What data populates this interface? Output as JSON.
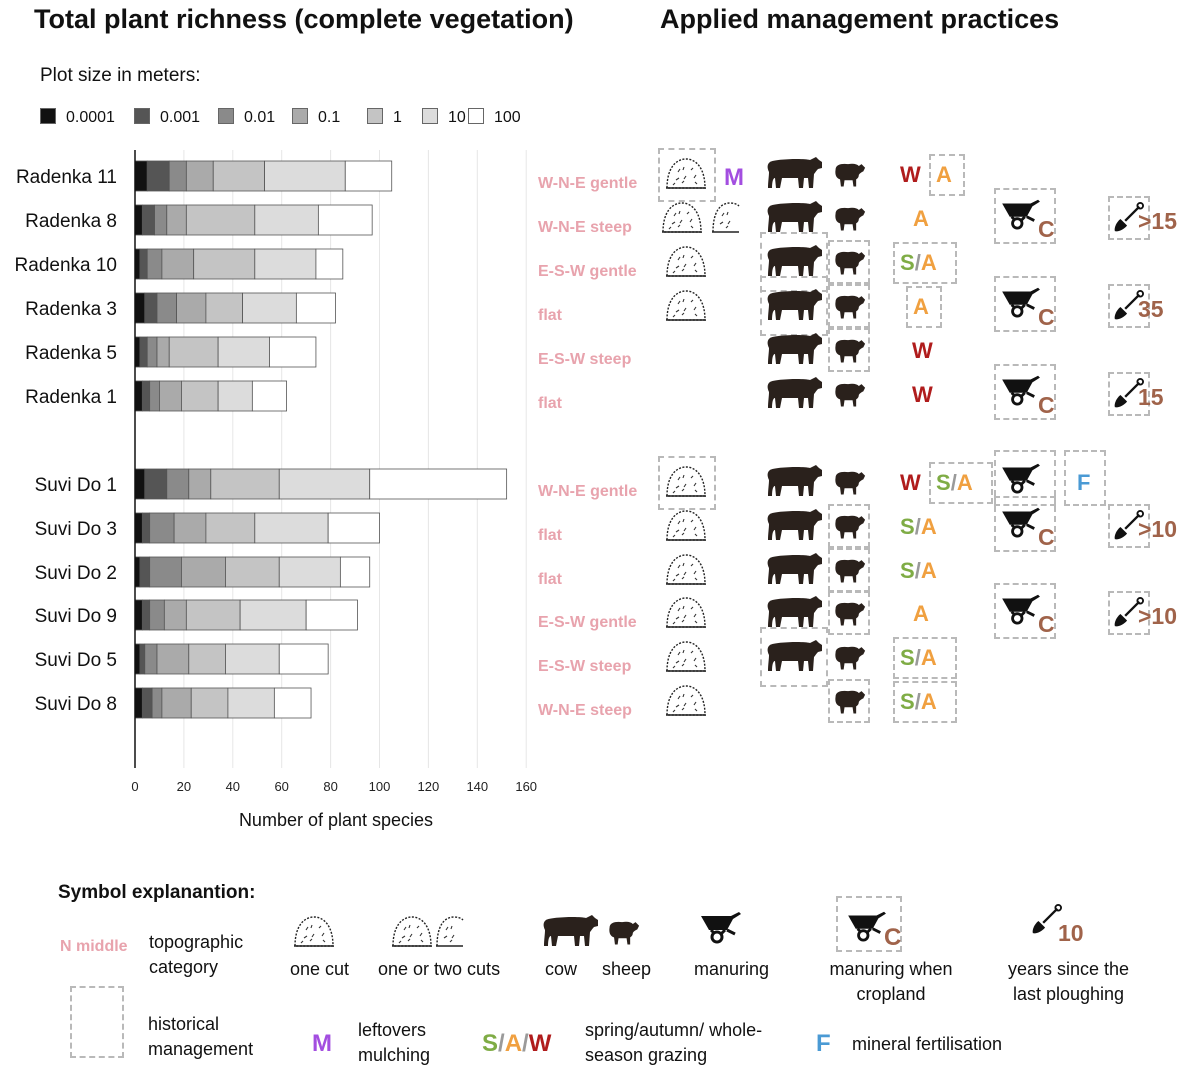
{
  "headings": {
    "left_title": "Total plant richness (complete vegetation)",
    "right_title": "Applied management practices"
  },
  "chart_data": {
    "type": "bar",
    "orientation": "horizontal",
    "stacked": true,
    "legend_title": "Plot size in meters:",
    "xlabel": "Number of plant species",
    "xlim": [
      0,
      160
    ],
    "xticks": [
      "0",
      "20",
      "40",
      "60",
      "80",
      "100",
      "120",
      "140",
      "160"
    ],
    "grid": true,
    "categories": [
      "Radenka 11",
      "Radenka 8",
      "Radenka 10",
      "Radenka 3",
      "Radenka 5",
      "Radenka 1",
      "Suvi Do 1",
      "Suvi Do 3",
      "Suvi Do 2",
      "Suvi Do 9",
      "Suvi Do 5",
      "Suvi Do 8"
    ],
    "series": [
      {
        "name": "0.0001",
        "color": "#111111",
        "values": [
          5,
          3,
          2,
          4,
          2,
          3,
          4,
          3,
          2,
          3,
          2,
          3
        ]
      },
      {
        "name": "0.001",
        "color": "#555555",
        "values": [
          9,
          5,
          3,
          5,
          3,
          3,
          9,
          3,
          4,
          3,
          2,
          4
        ]
      },
      {
        "name": "0.01",
        "color": "#8a8a8a",
        "values": [
          7,
          5,
          6,
          8,
          4,
          4,
          9,
          10,
          13,
          6,
          5,
          4
        ]
      },
      {
        "name": "0.1",
        "color": "#aaaaaa",
        "values": [
          11,
          8,
          13,
          12,
          5,
          9,
          9,
          13,
          18,
          9,
          13,
          12
        ]
      },
      {
        "name": "1",
        "color": "#c4c4c4",
        "values": [
          21,
          28,
          25,
          15,
          20,
          15,
          28,
          20,
          22,
          22,
          15,
          15
        ]
      },
      {
        "name": "10",
        "color": "#dcdcdc",
        "values": [
          33,
          26,
          25,
          22,
          21,
          14,
          37,
          30,
          25,
          27,
          22,
          19
        ]
      },
      {
        "name": "100",
        "color": "#ffffff",
        "values": [
          19,
          22,
          11,
          16,
          19,
          14,
          56,
          21,
          12,
          21,
          20,
          15
        ]
      }
    ]
  },
  "management": {
    "rows": [
      {
        "topo": "W-N-E gentle",
        "mowing": "one cut",
        "mow_hist": true,
        "mulch": "M",
        "cow": true,
        "cow_hist": false,
        "sheep": true,
        "sheep_hist": false,
        "graze": [
          {
            "t": "W",
            "hist": false
          },
          {
            "t": "A",
            "hist": true
          }
        ],
        "manure": "",
        "fert": "",
        "plough": ""
      },
      {
        "topo": "W-N-E steep",
        "mowing": "one or two cuts",
        "mow_hist": false,
        "mulch": "",
        "cow": true,
        "cow_hist": false,
        "sheep": true,
        "sheep_hist": false,
        "graze": [
          {
            "t": "A",
            "hist": false
          }
        ],
        "manure": "cropland",
        "fert": "",
        "plough": ">15"
      },
      {
        "topo": "E-S-W gentle",
        "mowing": "one cut",
        "mow_hist": false,
        "mulch": "",
        "cow": true,
        "cow_hist": true,
        "sheep": true,
        "sheep_hist": true,
        "graze": [
          {
            "t": "S/A",
            "hist": true
          }
        ],
        "manure": "",
        "fert": "",
        "plough": ""
      },
      {
        "topo": "flat",
        "mowing": "one cut",
        "mow_hist": false,
        "mulch": "",
        "cow": true,
        "cow_hist": true,
        "sheep": true,
        "sheep_hist": true,
        "graze": [
          {
            "t": "A",
            "hist": true
          }
        ],
        "manure": "cropland",
        "fert": "",
        "plough": "35"
      },
      {
        "topo": "E-S-W steep",
        "mowing": "",
        "mow_hist": false,
        "mulch": "",
        "cow": true,
        "cow_hist": false,
        "sheep": true,
        "sheep_hist": true,
        "graze": [
          {
            "t": "W",
            "hist": false
          }
        ],
        "manure": "",
        "fert": "",
        "plough": ""
      },
      {
        "topo": "flat",
        "mowing": "",
        "mow_hist": false,
        "mulch": "",
        "cow": true,
        "cow_hist": false,
        "sheep": true,
        "sheep_hist": false,
        "graze": [
          {
            "t": "W",
            "hist": false
          }
        ],
        "manure": "cropland",
        "fert": "",
        "plough": "15"
      },
      {
        "topo": "W-N-E gentle",
        "mowing": "one cut",
        "mow_hist": true,
        "mulch": "",
        "cow": true,
        "cow_hist": false,
        "sheep": true,
        "sheep_hist": false,
        "graze": [
          {
            "t": "W",
            "hist": false
          },
          {
            "t": "S/A",
            "hist": true
          }
        ],
        "manure": "manuring",
        "fert": "F",
        "plough": ""
      },
      {
        "topo": "flat",
        "mowing": "one cut",
        "mow_hist": false,
        "mulch": "",
        "cow": true,
        "cow_hist": false,
        "sheep": true,
        "sheep_hist": true,
        "graze": [
          {
            "t": "S/A",
            "hist": false
          }
        ],
        "manure": "cropland",
        "fert": "",
        "plough": ">10"
      },
      {
        "topo": "flat",
        "mowing": "one cut",
        "mow_hist": false,
        "mulch": "",
        "cow": true,
        "cow_hist": false,
        "sheep": true,
        "sheep_hist": true,
        "graze": [
          {
            "t": "S/A",
            "hist": false
          }
        ],
        "manure": "",
        "fert": "",
        "plough": ""
      },
      {
        "topo": "E-S-W gentle",
        "mowing": "one cut",
        "mow_hist": false,
        "mulch": "",
        "cow": true,
        "cow_hist": false,
        "sheep": true,
        "sheep_hist": true,
        "graze": [
          {
            "t": "A",
            "hist": false
          }
        ],
        "manure": "cropland",
        "fert": "",
        "plough": ">10"
      },
      {
        "topo": "E-S-W steep",
        "mowing": "one cut",
        "mow_hist": false,
        "mulch": "",
        "cow": true,
        "cow_hist": true,
        "sheep": true,
        "sheep_hist": false,
        "graze": [
          {
            "t": "S/A",
            "hist": true
          }
        ],
        "manure": "",
        "fert": "",
        "plough": ""
      },
      {
        "topo": "W-N-E steep",
        "mowing": "one cut",
        "mow_hist": false,
        "mulch": "",
        "cow": false,
        "cow_hist": false,
        "sheep": true,
        "sheep_hist": true,
        "graze": [
          {
            "t": "S/A",
            "hist": true
          }
        ],
        "manure": "",
        "fert": "",
        "plough": ""
      }
    ]
  },
  "explanation": {
    "title": "Symbol explanantion:",
    "topo_example": "N middle",
    "topo_label": "topographic category",
    "one_cut": "one cut",
    "one_or_two_cuts": "one or two cuts",
    "cow": "cow",
    "sheep": "sheep",
    "manuring": "manuring",
    "manuring_cropland": "manuring when cropland",
    "cropland_letter": "C",
    "years_value": "10",
    "years_label": "years since the last ploughing",
    "historical": "historical management",
    "mulch_letter": "M",
    "mulch_label": "leftovers mulching",
    "graze_s": "S",
    "graze_a": "A",
    "graze_w": "W",
    "graze_label": "spring/autumn/ whole-season grazing",
    "fert_letter": "F",
    "fert_label": "mineral fertilisation"
  },
  "colors": {
    "topo": "#e8a3ad",
    "mulch": "#a34ee0",
    "spring": "#7fac45",
    "autumn": "#f0a040",
    "whole_season": "#b01c1c",
    "fert": "#4a9ad4",
    "brown": "#a0634a"
  }
}
